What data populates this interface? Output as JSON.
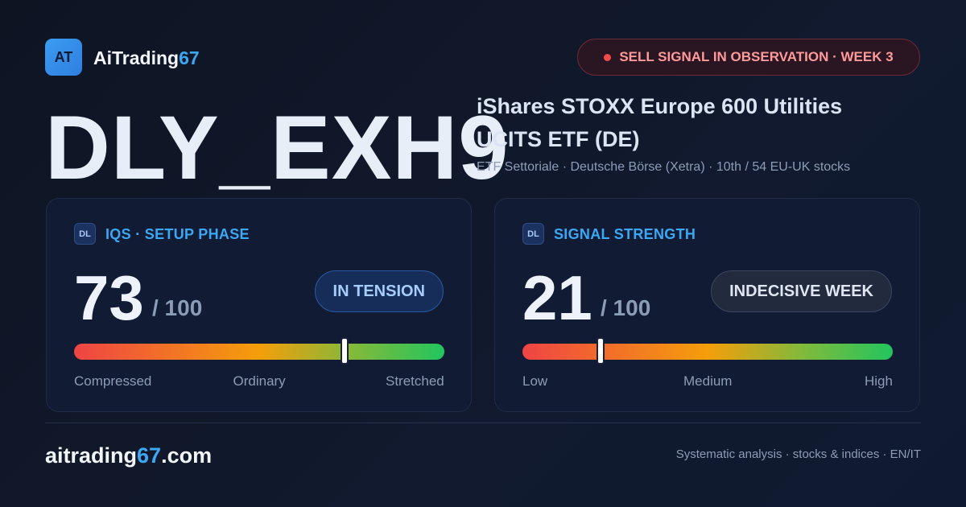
{
  "brand": {
    "logo": "AT",
    "name": "AiTrading",
    "accent": "67"
  },
  "badge": "SELL SIGNAL IN OBSERVATION · WEEK 3",
  "ticker": "DLY_EXH9",
  "instrument": {
    "title_line1": "iShares STOXX Europe 600 Utilities",
    "title_line2": "UCITS ETF (DE)",
    "subtitle": "ETF Settoriale · Deutsche Börse (Xetra) · 10th / 54 EU-UK stocks"
  },
  "cards": [
    {
      "icon": "DL",
      "label": "IQS · SETUP PHASE",
      "score": 73,
      "max": {
        "value": 100,
        "label": "/ 100"
      },
      "status": "IN TENSION",
      "scale": [
        "Compressed",
        "Ordinary",
        "Stretched"
      ]
    },
    {
      "icon": "DL",
      "label": "SIGNAL STRENGTH",
      "score": 21,
      "max": {
        "value": 100,
        "label": "/ 100"
      },
      "status": "INDECISIVE WEEK",
      "scale": [
        "Low",
        "Medium",
        "High"
      ]
    }
  ],
  "footer": {
    "domain_start": "aitrading",
    "domain_accent": "67",
    "domain_end": ".com",
    "tagline": "Systematic analysis · stocks & indices · EN/IT"
  }
}
